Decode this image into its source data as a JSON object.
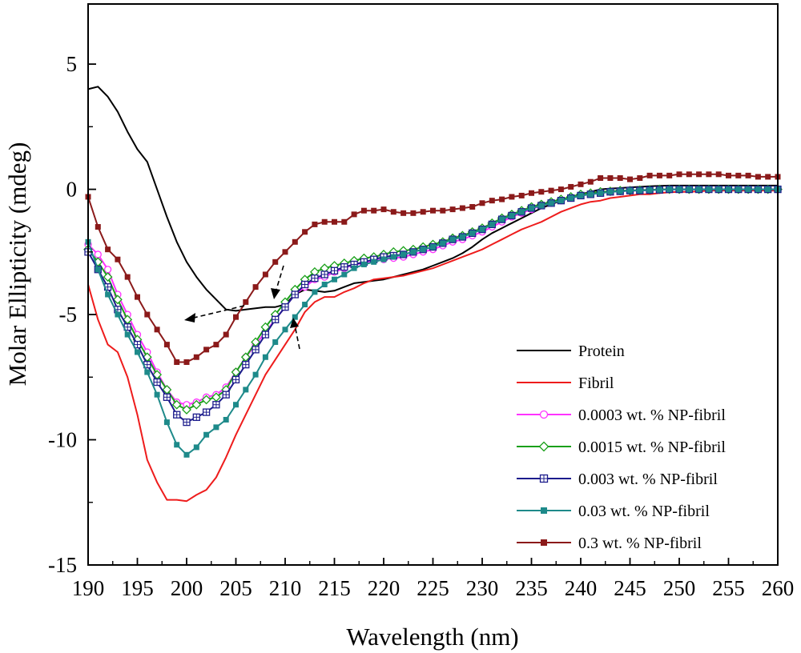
{
  "chart_data": {
    "type": "line",
    "title": "",
    "xlabel": "Wavelength (nm)",
    "ylabel": "Molar Ellipticity (mdeg)",
    "xlim": [
      190,
      260
    ],
    "ylim": [
      -15,
      7.4
    ],
    "xticks": [
      "190",
      "195",
      "200",
      "205",
      "210",
      "215",
      "220",
      "225",
      "230",
      "235",
      "240",
      "245",
      "250",
      "255",
      "260"
    ],
    "yticks": [
      "5",
      "0",
      "-5",
      "-10",
      "-15"
    ],
    "grid": false,
    "legend_position": "bottom-right",
    "series": [
      {
        "name": "Protein",
        "color": "#000000",
        "marker": "none",
        "x": [
          190,
          191,
          192,
          193,
          194,
          195,
          196,
          197,
          198,
          199,
          200,
          201,
          202,
          203,
          204,
          205,
          206,
          207,
          208,
          209,
          210,
          211,
          212,
          213,
          214,
          215,
          216,
          217,
          218,
          219,
          220,
          221,
          222,
          223,
          224,
          225,
          226,
          227,
          228,
          229,
          230,
          231,
          232,
          233,
          234,
          235,
          236,
          237,
          238,
          239,
          240,
          241,
          242,
          243,
          244,
          245,
          246,
          247,
          248,
          249,
          250,
          251,
          252,
          253,
          254,
          255,
          256,
          257,
          258,
          259,
          260
        ],
        "y": [
          4.0,
          4.1,
          3.7,
          3.1,
          2.3,
          1.6,
          1.1,
          0,
          -1.1,
          -2.1,
          -2.9,
          -3.5,
          -4.0,
          -4.4,
          -4.8,
          -4.85,
          -4.8,
          -4.75,
          -4.7,
          -4.7,
          -4.6,
          -4.2,
          -4.0,
          -4.05,
          -4.1,
          -4.05,
          -3.9,
          -3.75,
          -3.7,
          -3.65,
          -3.6,
          -3.5,
          -3.4,
          -3.3,
          -3.2,
          -3.05,
          -2.9,
          -2.75,
          -2.55,
          -2.3,
          -2.0,
          -1.75,
          -1.55,
          -1.35,
          -1.15,
          -0.95,
          -0.75,
          -0.6,
          -0.45,
          -0.3,
          -0.2,
          -0.1,
          0,
          0.03,
          0.05,
          0.08,
          0.1,
          0.12,
          0.14,
          0.15,
          0.15,
          0.15,
          0.15,
          0.15,
          0.15,
          0.15,
          0.15,
          0.15,
          0.15,
          0.15,
          0.15
        ]
      },
      {
        "name": "Fibril",
        "color": "#ee1c1c",
        "marker": "none",
        "x": [
          190,
          191,
          192,
          193,
          194,
          195,
          196,
          197,
          198,
          199,
          200,
          201,
          202,
          203,
          204,
          205,
          206,
          207,
          208,
          209,
          210,
          211,
          212,
          213,
          214,
          215,
          216,
          217,
          218,
          219,
          220,
          221,
          222,
          223,
          224,
          225,
          226,
          227,
          228,
          229,
          230,
          231,
          232,
          233,
          234,
          235,
          236,
          237,
          238,
          239,
          240,
          241,
          242,
          243,
          244,
          245,
          246,
          247,
          248,
          249,
          250,
          251,
          252,
          253,
          254,
          255,
          256,
          257,
          258,
          259,
          260
        ],
        "y": [
          -3.8,
          -5.2,
          -6.2,
          -6.5,
          -7.5,
          -9.0,
          -10.8,
          -11.7,
          -12.4,
          -12.4,
          -12.45,
          -12.2,
          -12.0,
          -11.5,
          -10.7,
          -9.8,
          -9.0,
          -8.2,
          -7.4,
          -6.8,
          -6.2,
          -5.6,
          -4.9,
          -4.5,
          -4.3,
          -4.3,
          -4.1,
          -3.95,
          -3.75,
          -3.6,
          -3.55,
          -3.5,
          -3.45,
          -3.35,
          -3.25,
          -3.15,
          -3.0,
          -2.85,
          -2.7,
          -2.55,
          -2.4,
          -2.2,
          -2.0,
          -1.8,
          -1.6,
          -1.45,
          -1.3,
          -1.1,
          -0.9,
          -0.75,
          -0.6,
          -0.5,
          -0.45,
          -0.35,
          -0.3,
          -0.25,
          -0.2,
          -0.2,
          -0.15,
          -0.12,
          -0.1,
          -0.1,
          -0.08,
          -0.05,
          -0.05,
          -0.05,
          -0.05,
          -0.05,
          -0.05,
          -0.05,
          -0.05
        ]
      },
      {
        "name": "0.0003 wt. % NP-fibril",
        "color": "#ff33ff",
        "marker": "open-circle",
        "x": [
          190,
          191,
          192,
          193,
          194,
          195,
          196,
          197,
          198,
          199,
          200,
          201,
          202,
          203,
          204,
          205,
          206,
          207,
          208,
          209,
          210,
          211,
          212,
          213,
          214,
          215,
          216,
          217,
          218,
          219,
          220,
          221,
          222,
          223,
          224,
          225,
          226,
          227,
          228,
          229,
          230,
          231,
          232,
          233,
          234,
          235,
          236,
          237,
          238,
          239,
          240,
          241,
          242,
          243,
          244,
          245,
          246,
          247,
          248,
          249,
          250,
          251,
          252,
          253,
          254,
          255,
          256,
          257,
          258,
          259,
          260
        ],
        "y": [
          -2.2,
          -2.6,
          -3.2,
          -4.2,
          -5.0,
          -5.8,
          -6.5,
          -7.3,
          -8.0,
          -8.5,
          -8.6,
          -8.5,
          -8.3,
          -8.2,
          -7.9,
          -7.3,
          -6.7,
          -6.2,
          -5.7,
          -5.2,
          -4.7,
          -4.2,
          -3.9,
          -3.6,
          -3.5,
          -3.3,
          -3.15,
          -3.0,
          -2.95,
          -2.85,
          -2.8,
          -2.75,
          -2.7,
          -2.6,
          -2.5,
          -2.4,
          -2.25,
          -2.1,
          -2.0,
          -1.85,
          -1.7,
          -1.5,
          -1.3,
          -1.1,
          -0.95,
          -0.8,
          -0.65,
          -0.55,
          -0.45,
          -0.35,
          -0.25,
          -0.2,
          -0.15,
          -0.1,
          -0.08,
          -0.05,
          -0.05,
          -0.03,
          -0.02,
          0,
          0,
          0,
          0,
          0,
          0,
          0,
          0,
          0,
          0,
          0,
          0
        ]
      },
      {
        "name": "0.0015 wt. % NP-fibril",
        "color": "#1aa01a",
        "marker": "open-diamond",
        "x": [
          190,
          191,
          192,
          193,
          194,
          195,
          196,
          197,
          198,
          199,
          200,
          201,
          202,
          203,
          204,
          205,
          206,
          207,
          208,
          209,
          210,
          211,
          212,
          213,
          214,
          215,
          216,
          217,
          218,
          219,
          220,
          221,
          222,
          223,
          224,
          225,
          226,
          227,
          228,
          229,
          230,
          231,
          232,
          233,
          234,
          235,
          236,
          237,
          238,
          239,
          240,
          241,
          242,
          243,
          244,
          245,
          246,
          247,
          248,
          249,
          250,
          251,
          252,
          253,
          254,
          255,
          256,
          257,
          258,
          259,
          260
        ],
        "y": [
          -2.4,
          -2.9,
          -3.5,
          -4.4,
          -5.2,
          -6.0,
          -6.7,
          -7.4,
          -8.0,
          -8.6,
          -8.8,
          -8.6,
          -8.4,
          -8.3,
          -8.0,
          -7.3,
          -6.7,
          -6.1,
          -5.5,
          -5.0,
          -4.5,
          -4.0,
          -3.6,
          -3.3,
          -3.15,
          -3.05,
          -2.95,
          -2.85,
          -2.75,
          -2.7,
          -2.6,
          -2.5,
          -2.45,
          -2.4,
          -2.3,
          -2.2,
          -2.1,
          -1.95,
          -1.85,
          -1.7,
          -1.55,
          -1.35,
          -1.15,
          -1.0,
          -0.85,
          -0.7,
          -0.6,
          -0.5,
          -0.4,
          -0.3,
          -0.2,
          -0.15,
          -0.1,
          -0.08,
          -0.05,
          -0.05,
          -0.03,
          -0.02,
          0,
          0,
          0,
          0,
          0,
          0,
          0,
          0,
          0,
          0,
          0,
          0,
          0
        ]
      },
      {
        "name": "0.003 wt. % NP-fibril",
        "color": "#1c1c8c",
        "marker": "open-square-cross",
        "x": [
          190,
          191,
          192,
          193,
          194,
          195,
          196,
          197,
          198,
          199,
          200,
          201,
          202,
          203,
          204,
          205,
          206,
          207,
          208,
          209,
          210,
          211,
          212,
          213,
          214,
          215,
          216,
          217,
          218,
          219,
          220,
          221,
          222,
          223,
          224,
          225,
          226,
          227,
          228,
          229,
          230,
          231,
          232,
          233,
          234,
          235,
          236,
          237,
          238,
          239,
          240,
          241,
          242,
          243,
          244,
          245,
          246,
          247,
          248,
          249,
          250,
          251,
          252,
          253,
          254,
          255,
          256,
          257,
          258,
          259,
          260
        ],
        "y": [
          -2.5,
          -3.2,
          -3.9,
          -4.8,
          -5.5,
          -6.2,
          -7.0,
          -7.7,
          -8.3,
          -9.0,
          -9.3,
          -9.1,
          -8.9,
          -8.6,
          -8.2,
          -7.6,
          -7.0,
          -6.4,
          -5.8,
          -5.2,
          -4.7,
          -4.2,
          -3.8,
          -3.55,
          -3.4,
          -3.25,
          -3.1,
          -3.0,
          -2.9,
          -2.8,
          -2.7,
          -2.65,
          -2.6,
          -2.5,
          -2.4,
          -2.3,
          -2.15,
          -2.0,
          -1.9,
          -1.75,
          -1.6,
          -1.4,
          -1.2,
          -1.05,
          -0.9,
          -0.75,
          -0.65,
          -0.55,
          -0.45,
          -0.35,
          -0.25,
          -0.2,
          -0.15,
          -0.1,
          -0.08,
          -0.05,
          -0.05,
          -0.03,
          -0.02,
          0,
          0,
          0,
          0,
          0,
          0,
          0,
          0,
          0,
          0,
          0,
          0
        ]
      },
      {
        "name": "0.03 wt. % NP-fibril",
        "color": "#1e8a8a",
        "marker": "filled-square",
        "x": [
          190,
          191,
          192,
          193,
          194,
          195,
          196,
          197,
          198,
          199,
          200,
          201,
          202,
          203,
          204,
          205,
          206,
          207,
          208,
          209,
          210,
          211,
          212,
          213,
          214,
          215,
          216,
          217,
          218,
          219,
          220,
          221,
          222,
          223,
          224,
          225,
          226,
          227,
          228,
          229,
          230,
          231,
          232,
          233,
          234,
          235,
          236,
          237,
          238,
          239,
          240,
          241,
          242,
          243,
          244,
          245,
          246,
          247,
          248,
          249,
          250,
          251,
          252,
          253,
          254,
          255,
          256,
          257,
          258,
          259,
          260
        ],
        "y": [
          -2.1,
          -3.2,
          -4.2,
          -5.0,
          -5.8,
          -6.5,
          -7.3,
          -8.2,
          -9.3,
          -10.2,
          -10.6,
          -10.3,
          -9.8,
          -9.5,
          -9.2,
          -8.6,
          -8.0,
          -7.4,
          -6.7,
          -6.1,
          -5.6,
          -5.1,
          -4.6,
          -4.1,
          -3.8,
          -3.6,
          -3.4,
          -3.15,
          -3.0,
          -2.9,
          -2.8,
          -2.7,
          -2.6,
          -2.5,
          -2.4,
          -2.3,
          -2.15,
          -2.0,
          -1.9,
          -1.75,
          -1.6,
          -1.4,
          -1.2,
          -1.05,
          -0.9,
          -0.75,
          -0.65,
          -0.55,
          -0.45,
          -0.35,
          -0.25,
          -0.2,
          -0.15,
          -0.1,
          -0.08,
          -0.05,
          -0.05,
          -0.03,
          -0.02,
          0,
          0,
          0,
          0,
          0,
          0,
          0,
          0,
          0,
          0,
          0,
          0
        ]
      },
      {
        "name": "0.3 wt. % NP-fibril",
        "color": "#8b1a1a",
        "marker": "filled-square",
        "x": [
          190,
          191,
          192,
          193,
          194,
          195,
          196,
          197,
          198,
          199,
          200,
          201,
          202,
          203,
          204,
          205,
          206,
          207,
          208,
          209,
          210,
          211,
          212,
          213,
          214,
          215,
          216,
          217,
          218,
          219,
          220,
          221,
          222,
          223,
          224,
          225,
          226,
          227,
          228,
          229,
          230,
          231,
          232,
          233,
          234,
          235,
          236,
          237,
          238,
          239,
          240,
          241,
          242,
          243,
          244,
          245,
          246,
          247,
          248,
          249,
          250,
          251,
          252,
          253,
          254,
          255,
          256,
          257,
          258,
          259,
          260
        ],
        "y": [
          -0.3,
          -1.5,
          -2.4,
          -2.8,
          -3.5,
          -4.3,
          -5.0,
          -5.6,
          -6.2,
          -6.9,
          -6.9,
          -6.7,
          -6.4,
          -6.2,
          -5.8,
          -5.1,
          -4.5,
          -3.9,
          -3.4,
          -2.9,
          -2.5,
          -2.1,
          -1.7,
          -1.4,
          -1.3,
          -1.3,
          -1.3,
          -1.0,
          -0.85,
          -0.85,
          -0.8,
          -0.9,
          -0.95,
          -0.95,
          -0.9,
          -0.85,
          -0.85,
          -0.8,
          -0.75,
          -0.7,
          -0.55,
          -0.45,
          -0.4,
          -0.3,
          -0.25,
          -0.15,
          -0.1,
          -0.05,
          0,
          0.1,
          0.2,
          0.3,
          0.45,
          0.45,
          0.45,
          0.4,
          0.45,
          0.55,
          0.55,
          0.55,
          0.6,
          0.6,
          0.6,
          0.6,
          0.6,
          0.55,
          0.55,
          0.55,
          0.5,
          0.5,
          0.5
        ]
      }
    ]
  }
}
